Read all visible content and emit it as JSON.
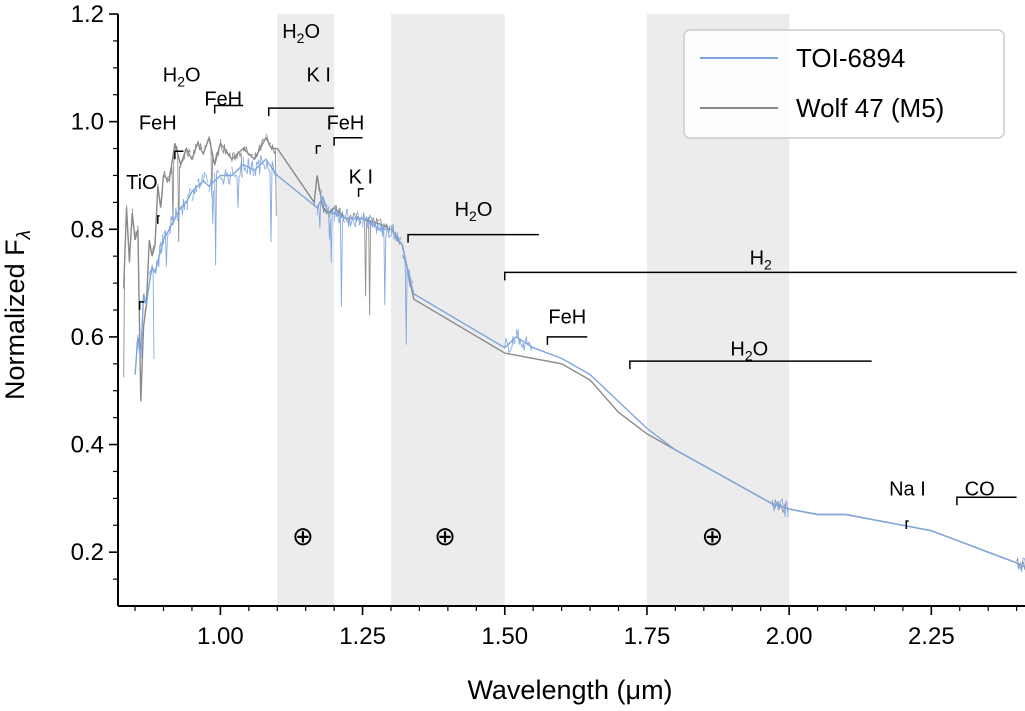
{
  "chart_data": {
    "type": "line",
    "xlabel": "Wavelength (μm)",
    "ylabel": "Normalized F",
    "ylabel_subscript": "λ",
    "xlim": [
      0.82,
      2.42
    ],
    "ylim": [
      0.1,
      1.2
    ],
    "xticks": [
      "1.00",
      "1.25",
      "1.50",
      "1.75",
      "2.00",
      "2.25"
    ],
    "xtick_values": [
      1.0,
      1.25,
      1.5,
      1.75,
      2.0,
      2.25
    ],
    "yticks": [
      "0.2",
      "0.4",
      "0.6",
      "0.8",
      "1.0",
      "1.2"
    ],
    "ytick_values": [
      0.2,
      0.4,
      0.6,
      0.8,
      1.0,
      1.2
    ],
    "telluric_bands": [
      [
        1.1,
        1.2
      ],
      [
        1.3,
        1.5
      ],
      [
        1.75,
        2.0
      ]
    ],
    "telluric_symbol": "⊕",
    "telluric_symbol_x": [
      1.145,
      1.395,
      1.865
    ],
    "telluric_symbol_y": 0.23,
    "legend": [
      {
        "name": "TOI-6894",
        "color": "#7fa6e0"
      },
      {
        "name": "Wolf 47 (M5)",
        "color": "#8a8a8a"
      }
    ],
    "series": [
      {
        "name": "Wolf 47 (M5)",
        "color": "#8a8a8a",
        "x": [
          0.83,
          0.835,
          0.84,
          0.845,
          0.85,
          0.855,
          0.86,
          0.865,
          0.87,
          0.875,
          0.88,
          0.885,
          0.89,
          0.895,
          0.9,
          0.91,
          0.92,
          0.93,
          0.94,
          0.95,
          0.96,
          0.97,
          0.98,
          0.99,
          1.0,
          1.02,
          1.04,
          1.06,
          1.08,
          1.09,
          1.1,
          1.165,
          1.17,
          1.18,
          1.19,
          1.2,
          1.22,
          1.25,
          1.28,
          1.3,
          1.32,
          1.33,
          1.34,
          1.5,
          1.55,
          1.6,
          1.65,
          1.7,
          1.75,
          1.8,
          1.97,
          2.0,
          2.05,
          2.1,
          2.15,
          2.2,
          2.25,
          2.3,
          2.35,
          2.4,
          2.42
        ],
        "y": [
          0.69,
          0.84,
          0.74,
          0.83,
          0.78,
          0.8,
          0.48,
          0.62,
          0.66,
          0.78,
          0.75,
          0.77,
          0.88,
          0.84,
          0.9,
          0.89,
          0.96,
          0.92,
          0.95,
          0.93,
          0.96,
          0.94,
          0.97,
          0.92,
          0.96,
          0.93,
          0.95,
          0.93,
          0.97,
          0.95,
          0.95,
          0.85,
          0.9,
          0.84,
          0.83,
          0.84,
          0.82,
          0.82,
          0.81,
          0.8,
          0.77,
          0.72,
          0.67,
          0.57,
          0.56,
          0.55,
          0.52,
          0.46,
          0.42,
          0.39,
          0.29,
          0.28,
          0.27,
          0.27,
          0.26,
          0.25,
          0.24,
          0.22,
          0.2,
          0.18,
          0.17
        ]
      },
      {
        "name": "TOI-6894",
        "color": "#7fa6e0",
        "x": [
          0.85,
          0.855,
          0.86,
          0.865,
          0.87,
          0.875,
          0.88,
          0.885,
          0.89,
          0.9,
          0.91,
          0.92,
          0.93,
          0.94,
          0.95,
          0.96,
          0.97,
          0.98,
          0.99,
          1.0,
          1.02,
          1.04,
          1.06,
          1.08,
          1.1,
          1.17,
          1.18,
          1.19,
          1.2,
          1.22,
          1.25,
          1.28,
          1.3,
          1.32,
          1.33,
          1.34,
          1.5,
          1.52,
          1.55,
          1.6,
          1.65,
          1.7,
          1.75,
          1.8,
          1.97,
          2.0,
          2.05,
          2.1,
          2.15,
          2.2,
          2.25,
          2.3,
          2.35,
          2.4,
          2.42
        ],
        "y": [
          0.53,
          0.6,
          0.56,
          0.68,
          0.66,
          0.7,
          0.73,
          0.72,
          0.74,
          0.78,
          0.8,
          0.82,
          0.84,
          0.85,
          0.87,
          0.88,
          0.89,
          0.88,
          0.89,
          0.9,
          0.9,
          0.92,
          0.91,
          0.93,
          0.9,
          0.84,
          0.86,
          0.83,
          0.83,
          0.82,
          0.82,
          0.8,
          0.8,
          0.77,
          0.72,
          0.68,
          0.58,
          0.6,
          0.58,
          0.56,
          0.53,
          0.48,
          0.43,
          0.39,
          0.29,
          0.28,
          0.27,
          0.27,
          0.26,
          0.25,
          0.24,
          0.22,
          0.2,
          0.18,
          0.17
        ]
      }
    ],
    "annotations": [
      {
        "label": "TiO",
        "x1": 0.858,
        "x2": 0.866,
        "y": 0.665,
        "tx": 0.862,
        "ty": 0.875
      },
      {
        "label": "FeH",
        "x1": 0.89,
        "x2": 0.893,
        "y": 0.825,
        "tx": 0.89,
        "ty": 0.985
      },
      {
        "label": "H2O",
        "x1": 0.92,
        "x2": 0.935,
        "y": 0.945,
        "tx": 0.932,
        "ty": 1.075
      },
      {
        "label": "FeH",
        "x1": 0.99,
        "x2": 1.04,
        "y": 1.03,
        "tx": 1.005,
        "ty": 1.03
      },
      {
        "label": "H2O",
        "x1": 1.085,
        "x2": 1.2,
        "y": 1.025,
        "tx": 1.142,
        "ty": 1.155
      },
      {
        "label": "K I",
        "x1": 1.169,
        "x2": 1.177,
        "y": 0.955,
        "tx": 1.173,
        "ty": 1.075
      },
      {
        "label": "FeH",
        "x1": 1.2,
        "x2": 1.25,
        "y": 0.97,
        "tx": 1.22,
        "ty": 0.985
      },
      {
        "label": "K I",
        "x1": 1.243,
        "x2": 1.252,
        "y": 0.875,
        "tx": 1.247,
        "ty": 0.885
      },
      {
        "label": "H2O",
        "x1": 1.33,
        "x2": 1.56,
        "y": 0.79,
        "tx": 1.445,
        "ty": 0.825
      },
      {
        "label": "H2",
        "x1": 1.5,
        "x2": 2.4,
        "y": 0.72,
        "tx": 1.95,
        "ty": 0.735
      },
      {
        "label": "FeH",
        "x1": 1.575,
        "x2": 1.645,
        "y": 0.6,
        "tx": 1.61,
        "ty": 0.625
      },
      {
        "label": "H2O",
        "x1": 1.72,
        "x2": 2.145,
        "y": 0.555,
        "tx": 1.93,
        "ty": 0.565
      },
      {
        "label": "Na I",
        "x1": 2.206,
        "x2": 2.21,
        "y": 0.258,
        "tx": 2.208,
        "ty": 0.305
      },
      {
        "label": "CO",
        "x1": 2.295,
        "x2": 2.4,
        "y": 0.302,
        "tx": 2.335,
        "ty": 0.305
      }
    ]
  }
}
